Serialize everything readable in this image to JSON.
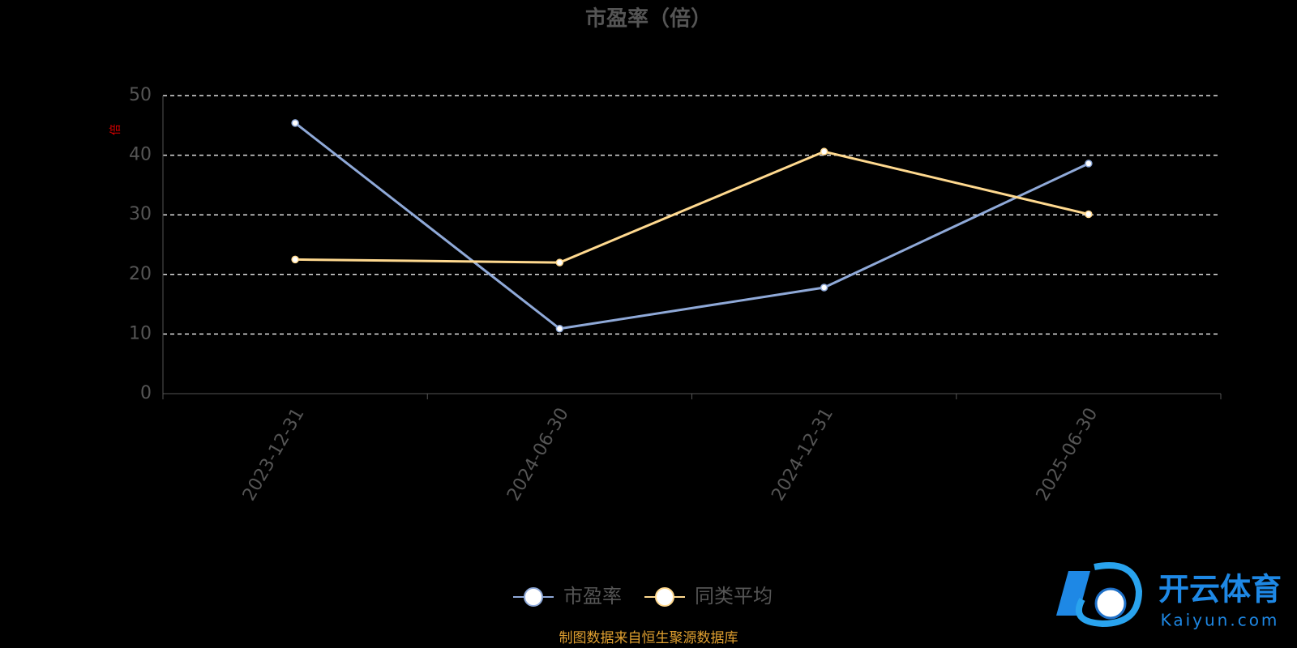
{
  "chart_data": {
    "type": "line",
    "title": "市盈率（倍）",
    "y_label": "倍",
    "categories": [
      "2023-12-31",
      "2024-06-30",
      "2024-12-31",
      "2025-06-30"
    ],
    "series": [
      {
        "name": "市盈率",
        "color": "#8fa9d8",
        "values": [
          45.4,
          10.9,
          17.8,
          38.6
        ]
      },
      {
        "name": "同类平均",
        "color": "#ffd98f",
        "values": [
          22.5,
          22.0,
          40.6,
          30.1
        ]
      }
    ],
    "ylim": [
      0,
      50
    ],
    "yticks": [
      0,
      10,
      20,
      30,
      40,
      50
    ],
    "grid": true,
    "legend": "bottom",
    "source": "制图数据来自恒生聚源数据库"
  },
  "watermark": {
    "brand": "开云体育",
    "site": "Kaiyun.com"
  }
}
